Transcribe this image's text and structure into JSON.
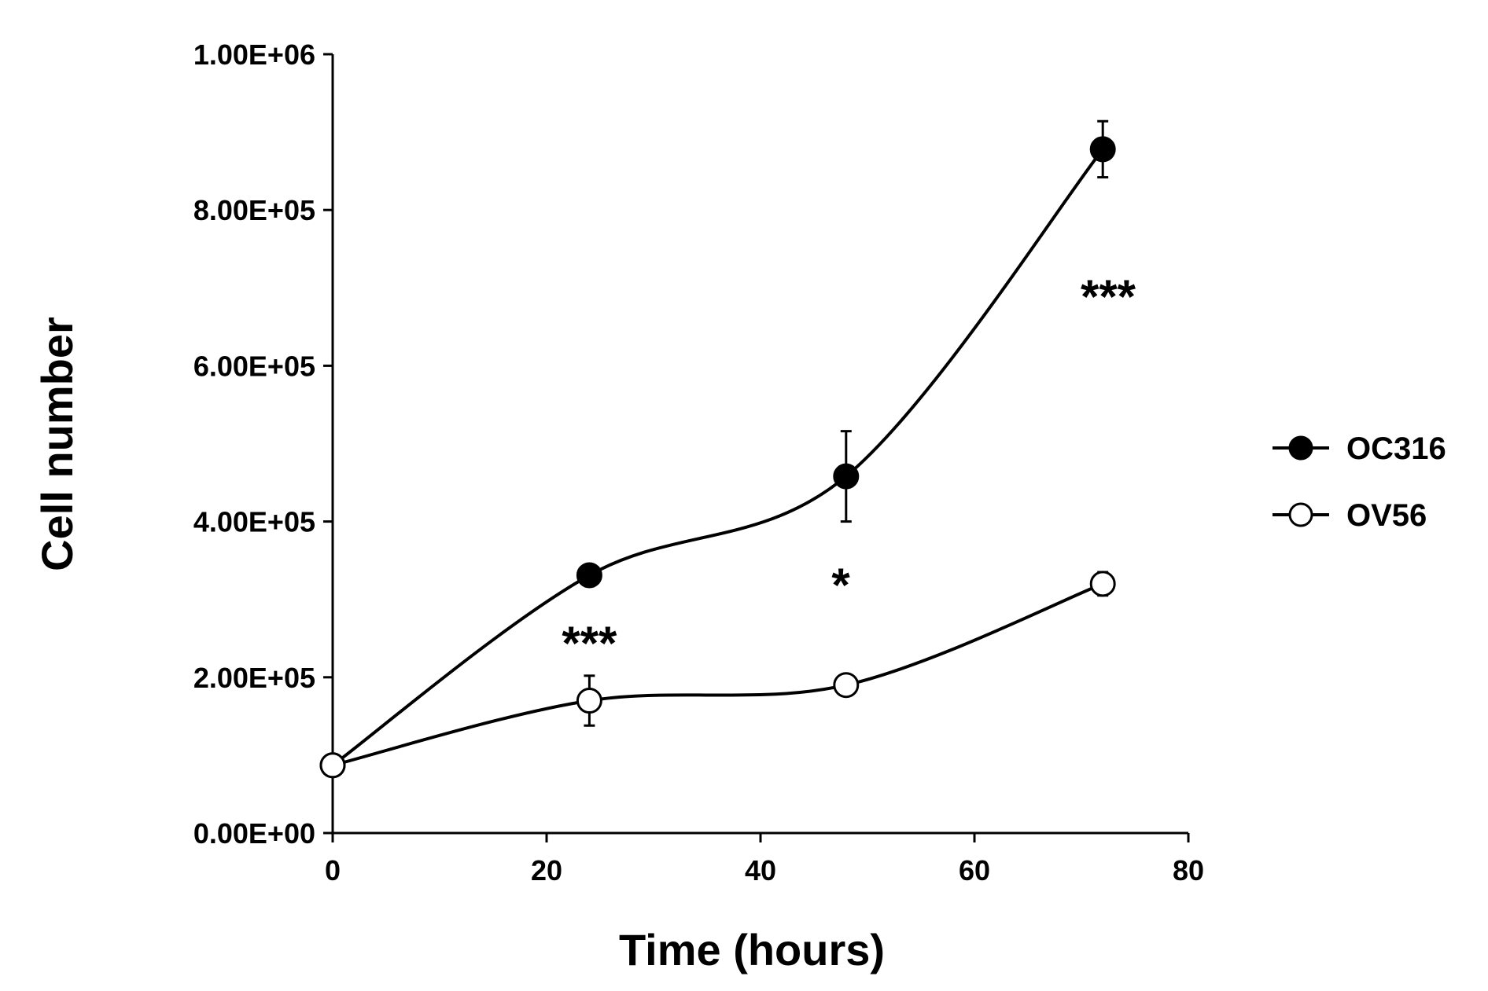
{
  "chart_data": {
    "type": "line",
    "xlabel": "Time (hours)",
    "ylabel": "Cell number",
    "xlim": [
      0,
      80
    ],
    "ylim": [
      0,
      1000000
    ],
    "x_ticks": [
      0,
      20,
      40,
      60,
      80
    ],
    "x_tick_labels": [
      "0",
      "20",
      "40",
      "60",
      "80"
    ],
    "y_ticks": [
      0,
      200000,
      400000,
      600000,
      800000,
      1000000
    ],
    "y_tick_labels": [
      "0.00E+00",
      "2.00E+05",
      "4.00E+05",
      "6.00E+05",
      "8.00E+05",
      "1.00E+06"
    ],
    "grid": false,
    "smoothed": true,
    "legend_position": "right",
    "x": [
      0,
      24,
      48,
      72
    ],
    "series": [
      {
        "name": "OC316",
        "marker": "filled-circle",
        "color": "#000000",
        "values": [
          87000,
          331000,
          458000,
          878000
        ],
        "errors": [
          5000,
          8000,
          58000,
          36000
        ]
      },
      {
        "name": "OV56",
        "marker": "open-circle",
        "color": "#000000",
        "values": [
          87000,
          170000,
          190000,
          320000
        ],
        "errors": [
          5000,
          32000,
          8000,
          15000
        ]
      }
    ],
    "annotations": [
      {
        "text": "***",
        "x": 24,
        "y": 245000
      },
      {
        "text": "*",
        "x": 47.5,
        "y": 320000
      },
      {
        "text": "***",
        "x": 72.5,
        "y": 690000
      }
    ]
  }
}
